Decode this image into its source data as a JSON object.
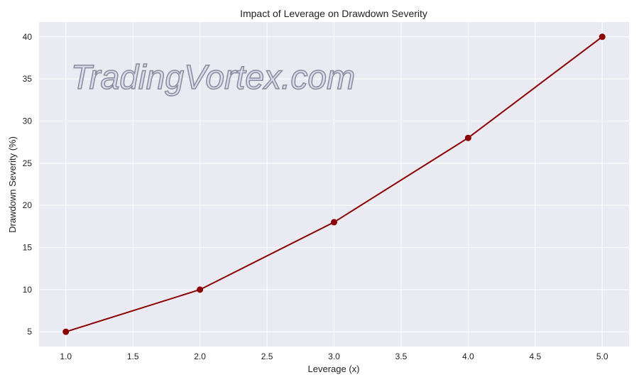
{
  "chart_data": {
    "type": "line",
    "title": "Impact of Leverage on Drawdown Severity",
    "xlabel": "Leverage (x)",
    "ylabel": "Drawdown Severity (%)",
    "x": [
      1,
      2,
      3,
      4,
      5
    ],
    "series": [
      {
        "values": [
          5,
          10,
          18,
          28,
          40
        ],
        "color": "#8b0000",
        "marker": "circle"
      }
    ],
    "xlim": [
      0.8,
      5.2
    ],
    "ylim": [
      3.25,
      41.75
    ],
    "xticks": [
      "1.0",
      "1.5",
      "2.0",
      "2.5",
      "3.0",
      "3.5",
      "4.0",
      "4.5",
      "5.0"
    ],
    "yticks": [
      "5",
      "10",
      "15",
      "20",
      "25",
      "30",
      "35",
      "40"
    ],
    "grid": true,
    "background": "#eaeaf2"
  },
  "watermark": "TradingVortex.com"
}
